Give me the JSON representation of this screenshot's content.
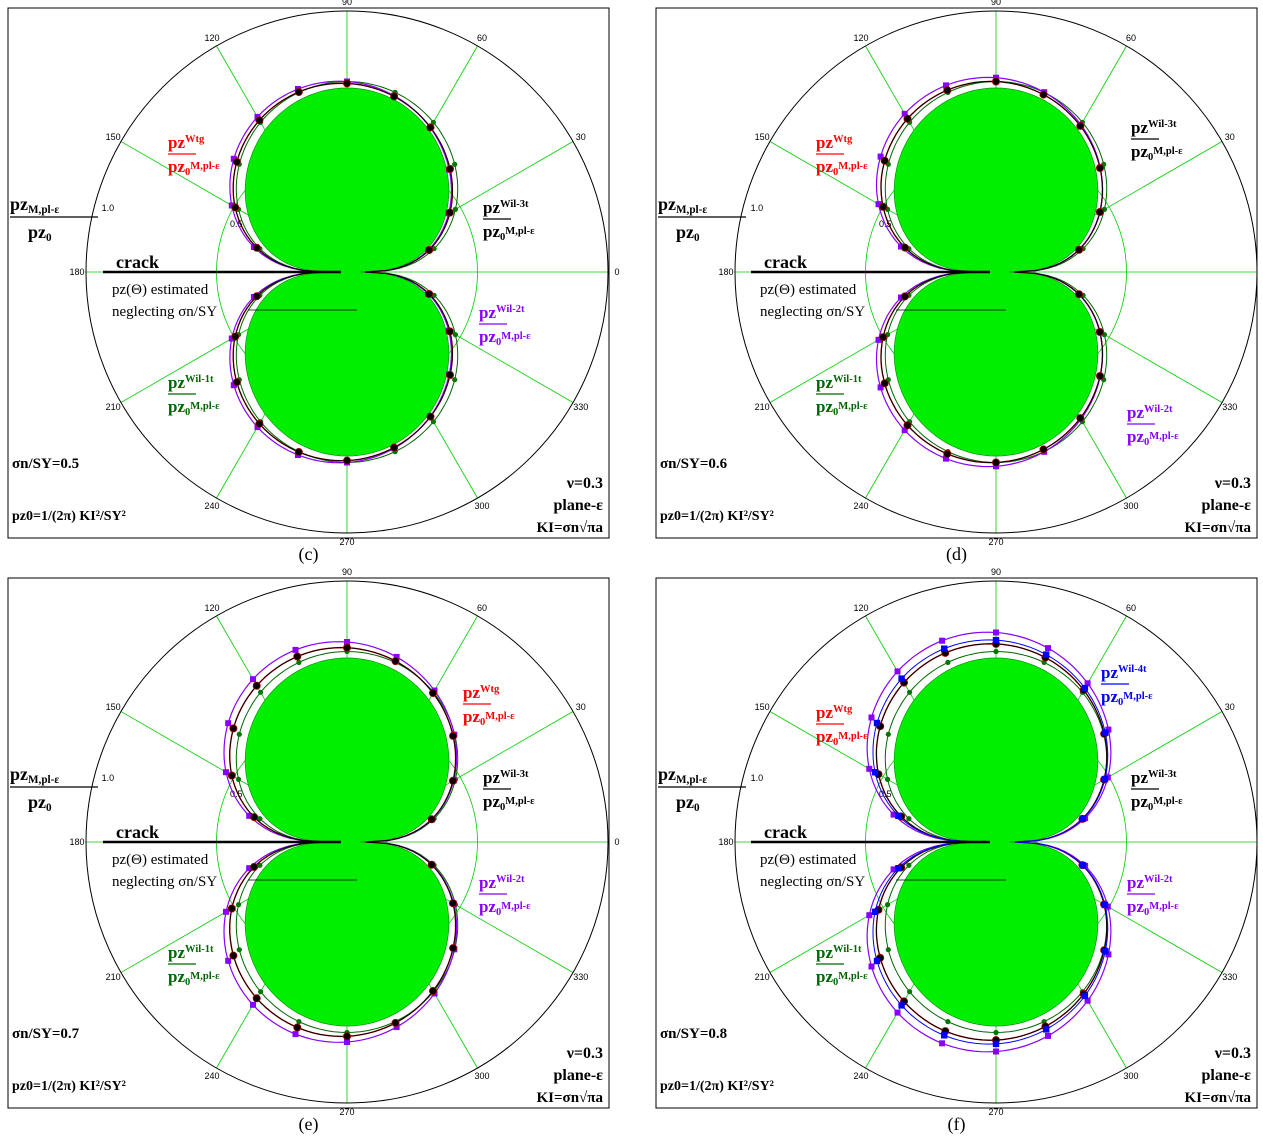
{
  "common": {
    "radial_ticks": [
      0.5,
      1.0
    ],
    "angle_ticks": [
      "0",
      "30",
      "60",
      "90",
      "120",
      "150",
      "180",
      "210",
      "240",
      "270",
      "300",
      "330"
    ],
    "crack_label": "crack",
    "estimate_line1": "pz(Θ) estimated",
    "estimate_line2": "neglecting σn/SY",
    "pzM_label": "pzM,pl-ε",
    "pz0_label": "pz0",
    "nu_label": "ν=0.3",
    "plane_label": "plane-ε",
    "ki_label": "KI=σn√πa",
    "pz0_formula": "pz0=1/(2π) KI²/SY²",
    "colors": {
      "estimated_fill": "#00ee00",
      "wtg": "#ff0000",
      "wil1t": "#006600",
      "wil2t": "#8800ff",
      "wil3t": "#000000",
      "wil4t": "#0000ff",
      "grid": "#00cc00"
    }
  },
  "chart_data": [
    {
      "type": "polar",
      "caption": "(c)",
      "ratio_label": "σn/SY=0.5",
      "sigma_ratio": 0.5,
      "rmax": 1.0,
      "series": [
        {
          "name": "pzWtg/pz0 M,pl-ε",
          "scale": 0.99
        },
        {
          "name": "pzWil-1t/pz0 M,pl-ε",
          "scale": 1.0
        },
        {
          "name": "pzWil-2t/pz0 M,pl-ε",
          "scale": 1.0
        },
        {
          "name": "pzWil-3t/pz0 M,pl-ε",
          "scale": 0.99
        }
      ]
    },
    {
      "type": "polar",
      "caption": "(d)",
      "ratio_label": "σn/SY=0.6",
      "sigma_ratio": 0.6,
      "rmax": 1.0,
      "series": [
        {
          "name": "pzWtg/pz0 M,pl-ε",
          "scale": 1.0
        },
        {
          "name": "pzWil-1t/pz0 M,pl-ε",
          "scale": 1.0
        },
        {
          "name": "pzWil-2t/pz0 M,pl-ε",
          "scale": 1.02
        },
        {
          "name": "pzWil-3t/pz0 M,pl-ε",
          "scale": 1.0
        }
      ]
    },
    {
      "type": "polar",
      "caption": "(e)",
      "ratio_label": "σn/SY=0.7",
      "sigma_ratio": 0.7,
      "rmax": 1.0,
      "series": [
        {
          "name": "pzWtg/pz0 M,pl-ε",
          "scale": 1.02
        },
        {
          "name": "pzWil-1t/pz0 M,pl-ε",
          "scale": 1.0
        },
        {
          "name": "pzWil-2t/pz0 M,pl-ε",
          "scale": 1.05
        },
        {
          "name": "pzWil-3t/pz0 M,pl-ε",
          "scale": 1.02
        }
      ]
    },
    {
      "type": "polar",
      "caption": "(f)",
      "ratio_label": "σn/SY=0.8",
      "sigma_ratio": 0.8,
      "rmax": 1.0,
      "series": [
        {
          "name": "pzWtg/pz0 M,pl-ε",
          "scale": 1.04
        },
        {
          "name": "pzWil-1t/pz0 M,pl-ε",
          "scale": 1.0
        },
        {
          "name": "pzWil-2t/pz0 M,pl-ε",
          "scale": 1.1
        },
        {
          "name": "pzWil-3t/pz0 M,pl-ε",
          "scale": 1.04
        },
        {
          "name": "pzWil-4t/pz0 M,pl-ε",
          "scale": 1.06
        }
      ]
    }
  ]
}
